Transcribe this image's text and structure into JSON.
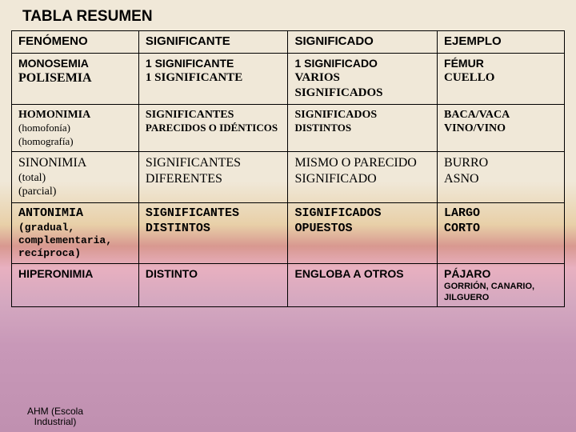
{
  "title": "TABLA RESUMEN",
  "headers": {
    "c0": "FENÓMENO",
    "c1": "SIGNIFICANTE",
    "c2": "SIGNIFICADO",
    "c3": "EJEMPLO"
  },
  "row1": {
    "c0a": "MONOSEMIA",
    "c0b": "POLISEMIA",
    "c1a": "1 SIGNIFICANTE",
    "c1b": "1 SIGNIFICANTE",
    "c2a": "1 SIGNIFICADO",
    "c2b": "VARIOS SIGNIFICADOS",
    "c3a": "FÉMUR",
    "c3b": "CUELLO"
  },
  "row2": {
    "c0a": "HOMONIMIA",
    "c0b": "(homofonía)",
    "c0c": "(homografía)",
    "c1a": "SIGNIFICANTES",
    "c1b": "PARECIDOS O IDÉNTICOS",
    "c2a": "SIGNIFICADOS",
    "c2b": "DISTINTOS",
    "c3a": "BACA/VACA",
    "c3b": "VINO/VINO"
  },
  "row3": {
    "c0a": "SINONIMIA",
    "c0b": "(total)",
    "c0c": "(parcial)",
    "c1": "SIGNIFICANTES DIFERENTES",
    "c2": "MISMO O PARECIDO SIGNIFICADO",
    "c3a": "BURRO",
    "c3b": "ASNO"
  },
  "row4": {
    "c0a": "ANTONIMIA",
    "c0b": "(gradual, complementaria, recíproca)",
    "c1": "SIGNIFICANTES DISTINTOS",
    "c2": "SIGNIFICADOS OPUESTOS",
    "c3a": "LARGO",
    "c3b": "CORTO"
  },
  "row5": {
    "c0": "HIPERONIMIA",
    "c1": "DISTINTO",
    "c2": "ENGLOBA A OTROS",
    "c3a": "PÁJARO",
    "c3b": "GORRIÓN, CANARIO, JILGUERO"
  },
  "footer": {
    "l1": "AHM (Escola",
    "l2": "Industrial)"
  },
  "colors": {
    "border": "#000000",
    "text": "#000000",
    "bg_top": "#f0e8d8",
    "bg_mid1": "#e8d0a8",
    "bg_mid2": "#d89890",
    "bg_mid3": "#e8b0c0",
    "bg_bot": "#c090b0"
  }
}
